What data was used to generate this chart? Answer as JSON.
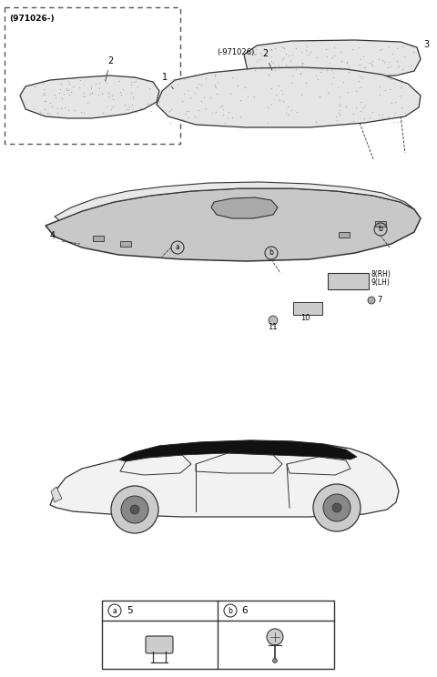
{
  "bg_color": "#ffffff",
  "fig_width": 4.8,
  "fig_height": 7.44,
  "dpi": 100,
  "text_color": "#000000",
  "line_color": "#333333",
  "part_fill": "#e5e5e5",
  "dot_color": "#888888",
  "labels": {
    "topleft_code": "(971026-)",
    "center_code": "(-971026)",
    "p1": "1",
    "p2": "2",
    "p3": "3",
    "p4": "4",
    "p5": "5",
    "p6": "6",
    "p7": "7",
    "p8": "8(RH)",
    "p9": "9(LH)",
    "p10": "10",
    "p11": "11",
    "la": "a",
    "lb": "b"
  }
}
